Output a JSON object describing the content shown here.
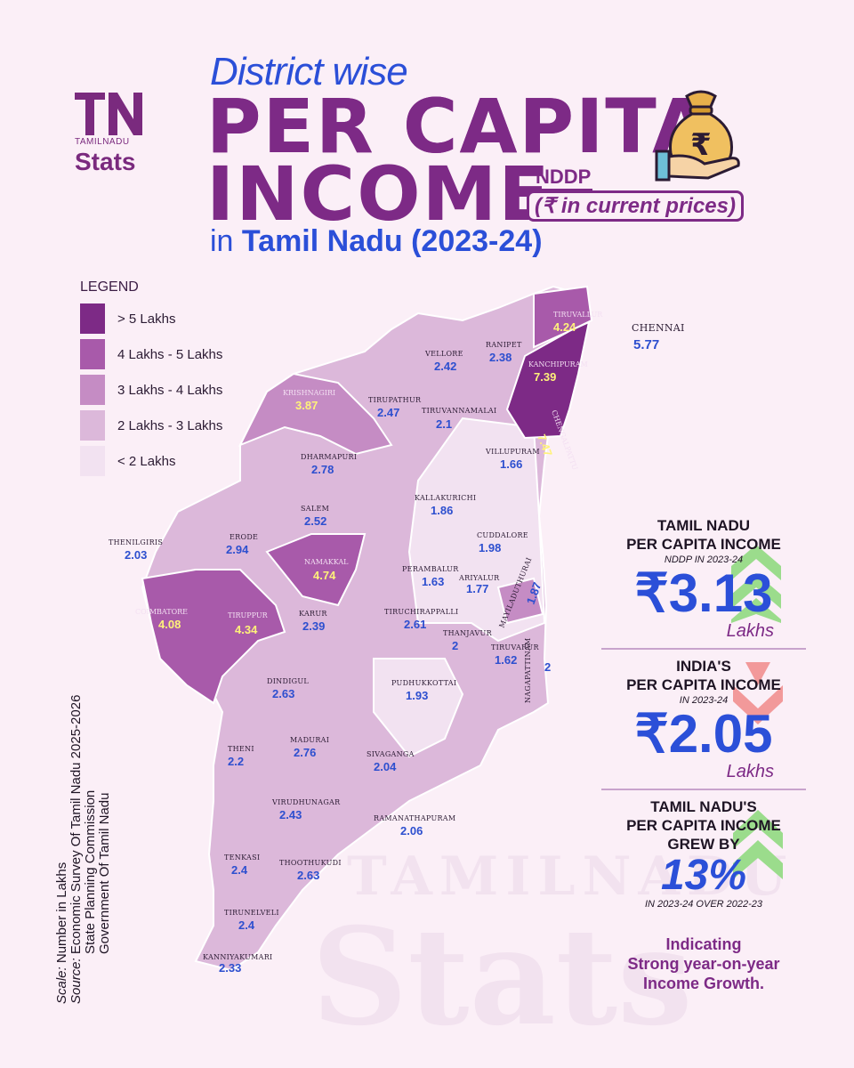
{
  "brand": {
    "logo_letters": "TN",
    "logo_small": "TAMILNADU",
    "logo_big": "Stats",
    "watermark_small": "TAMILNADU",
    "watermark_big": "Stats"
  },
  "title": {
    "line1": "District wise",
    "line2": "PER CAPITA",
    "line3": "INCOME",
    "nddp": "NDDP",
    "prices": "(₹ in current prices)",
    "line4_prefix": "in",
    "line4_bold": "Tamil Nadu (2023-24)"
  },
  "legend": {
    "title": "LEGEND",
    "items": [
      {
        "label": "> 5 Lakhs",
        "color": "#7d2a86"
      },
      {
        "label": "4 Lakhs - 5 Lakhs",
        "color": "#a85aaa"
      },
      {
        "label": "3 Lakhs - 4 Lakhs",
        "color": "#c58cc4"
      },
      {
        "label": "2 Lakhs - 3 Lakhs",
        "color": "#dcb8da"
      },
      {
        "label": "< 2 Lakhs",
        "color": "#f2e2f1"
      }
    ]
  },
  "districts": [
    {
      "name": "TIRUVALLUR",
      "value": "4.24"
    },
    {
      "name": "CHENNAI",
      "value": "5.77"
    },
    {
      "name": "VELLORE",
      "value": "2.42"
    },
    {
      "name": "RANIPET",
      "value": "2.38"
    },
    {
      "name": "KANCHIPURAM",
      "value": "7.39"
    },
    {
      "name": "CHENGALPATTU",
      "value": "7.47"
    },
    {
      "name": "KRISHNAGIRI",
      "value": "3.87"
    },
    {
      "name": "TIRUPATHUR",
      "value": "2.47"
    },
    {
      "name": "TIRUVANNAMALAI",
      "value": "2.1"
    },
    {
      "name": "DHARMAPURI",
      "value": "2.78"
    },
    {
      "name": "VILLUPURAM",
      "value": "1.66"
    },
    {
      "name": "SALEM",
      "value": "2.52"
    },
    {
      "name": "KALLAKURICHI",
      "value": "1.86"
    },
    {
      "name": "THENILGIRIS",
      "value": "2.03"
    },
    {
      "name": "ERODE",
      "value": "2.94"
    },
    {
      "name": "NAMAKKAL",
      "value": "4.74"
    },
    {
      "name": "CUDDALORE",
      "value": "1.98"
    },
    {
      "name": "PERAMBALUR",
      "value": "1.63"
    },
    {
      "name": "ARIYALUR",
      "value": "1.77"
    },
    {
      "name": "MAYILADUTHURAI",
      "value": "1.87"
    },
    {
      "name": "COIMBATORE",
      "value": "4.08"
    },
    {
      "name": "TIRUPPUR",
      "value": "4.34"
    },
    {
      "name": "KARUR",
      "value": "2.39"
    },
    {
      "name": "TIRUCHIRAPPALLI",
      "value": "2.61"
    },
    {
      "name": "THANJAVUR",
      "value": "2"
    },
    {
      "name": "TIRUVARUR",
      "value": "1.62"
    },
    {
      "name": "NAGAPATTINAM",
      "value": "2"
    },
    {
      "name": "DINDIGUL",
      "value": "2.63"
    },
    {
      "name": "PUDHUKKOTTAI",
      "value": "1.93"
    },
    {
      "name": "THENI",
      "value": "2.2"
    },
    {
      "name": "MADURAI",
      "value": "2.76"
    },
    {
      "name": "SIVAGANGA",
      "value": "2.04"
    },
    {
      "name": "VIRUDHUNAGAR",
      "value": "2.43"
    },
    {
      "name": "RAMANATHAPURAM",
      "value": "2.06"
    },
    {
      "name": "TENKASI",
      "value": "2.4"
    },
    {
      "name": "THOOTHUKUDI",
      "value": "2.63"
    },
    {
      "name": "TIRUNELVELI",
      "value": "2.4"
    },
    {
      "name": "KANNIYAKUMARI",
      "value": "2.33"
    }
  ],
  "stats": {
    "tn": {
      "title1": "TAMIL NADU",
      "title2": "PER CAPITA INCOME",
      "sub": "NDDP IN 2023-24",
      "value": "₹3.13",
      "unit": "Lakhs"
    },
    "india": {
      "title1": "INDIA'S",
      "title2": "PER CAPITA INCOME",
      "sub": "IN 2023-24",
      "value": "₹2.05",
      "unit": "Lakhs"
    },
    "growth": {
      "title1": "TAMIL NADU'S",
      "title2": "PER CAPITA INCOME",
      "title3": "GREW BY",
      "value": "13%",
      "sub": "IN 2023-24 OVER 2022-23"
    },
    "note1": "Indicating",
    "note2": "Strong year-on-year",
    "note3": "Income Growth.",
    "up_arrow_color": "#9bdc8c",
    "down_arrow_color": "#f08a8a"
  },
  "source": {
    "scale_label": "Scale:",
    "scale_text": "Number in Lakhs",
    "source_label": "Source:",
    "line1": "Economic Survey Of Tamil Nadu 2025-2026",
    "line2": "State Planning Commission",
    "line3": "Government Of Tamil Nadu"
  }
}
